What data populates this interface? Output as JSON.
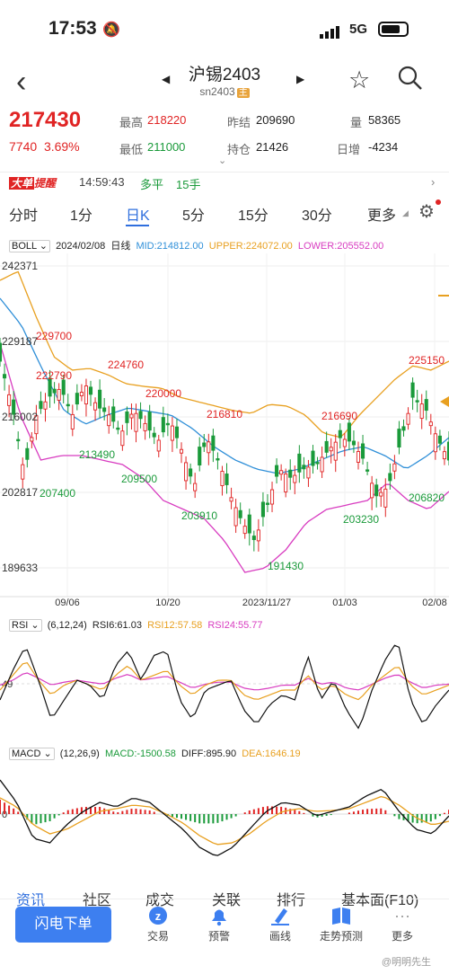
{
  "status": {
    "time": "17:53",
    "network": "5G"
  },
  "header": {
    "title": "沪锡2403",
    "code": "sn2403",
    "main_tag": "主"
  },
  "quote": {
    "price": "217430",
    "change": "7740",
    "change_pct": "3.69%",
    "high_label": "最高",
    "high": "218220",
    "low_label": "最低",
    "low": "211000",
    "prev_close_label": "昨结",
    "prev_close": "209690",
    "oi_label": "持仓",
    "oi": "21426",
    "volume_label": "量",
    "volume": "58365",
    "oi_change_label": "日增",
    "oi_change": "-4234"
  },
  "alert": {
    "tag_a": "大单",
    "tag_b": "提醒",
    "time": "14:59:43",
    "type": "多平",
    "qty": "15手"
  },
  "tabs": [
    "分时",
    "1分",
    "日K",
    "5分",
    "15分",
    "30分",
    "更多"
  ],
  "active_tab": "日K",
  "boll": {
    "name": "BOLL",
    "date": "2024/02/08",
    "period": "日线",
    "mid": "MID:214812.00",
    "upper": "UPPER:224072.00",
    "lower": "LOWER:205552.00"
  },
  "price_axis": [
    "242371",
    "229187",
    "216002",
    "202817",
    "189633"
  ],
  "date_axis": [
    "09/06",
    "10/20",
    "2023/11/27",
    "01/03",
    "02/08"
  ],
  "annotations": [
    {
      "text": "229700",
      "color": "#e02424"
    },
    {
      "text": "222790",
      "color": "#e02424"
    },
    {
      "text": "224760",
      "color": "#e02424"
    },
    {
      "text": "220000",
      "color": "#e02424"
    },
    {
      "text": "216810",
      "color": "#e02424"
    },
    {
      "text": "216690",
      "color": "#e02424"
    },
    {
      "text": "225150",
      "color": "#e02424"
    },
    {
      "text": "213490",
      "color": "#1a9a3a"
    },
    {
      "text": "207400",
      "color": "#1a9a3a"
    },
    {
      "text": "209500",
      "color": "#1a9a3a"
    },
    {
      "text": "203910",
      "color": "#1a9a3a"
    },
    {
      "text": "191430",
      "color": "#1a9a3a"
    },
    {
      "text": "203230",
      "color": "#1a9a3a"
    },
    {
      "text": "206820",
      "color": "#1a9a3a"
    }
  ],
  "rsi": {
    "name": "RSI",
    "params": "(6,12,24)",
    "rsi6": "RSI6:61.03",
    "rsi12": "RSI12:57.58",
    "rsi24": "RSI24:55.77",
    "axis_mid": "49"
  },
  "macd": {
    "name": "MACD",
    "params": "(12,26,9)",
    "macd": "MACD:-1500.58",
    "diff": "DIFF:895.90",
    "dea": "DEA:1646.19",
    "axis_zero": "0"
  },
  "subtabs": [
    "资讯",
    "社区",
    "成交",
    "关联",
    "排行",
    "基本面(F10)"
  ],
  "toolbar": {
    "flash": "闪电下单",
    "items": [
      "交易",
      "预警",
      "画线",
      "走势预测",
      "更多"
    ]
  },
  "watermark": "@明明先生",
  "colors": {
    "up": "#e02424",
    "down": "#1a9a3a",
    "mid": "#2f8fd8",
    "upper": "#e8a020",
    "lower": "#d83cc0",
    "accent": "#2f6fde"
  }
}
